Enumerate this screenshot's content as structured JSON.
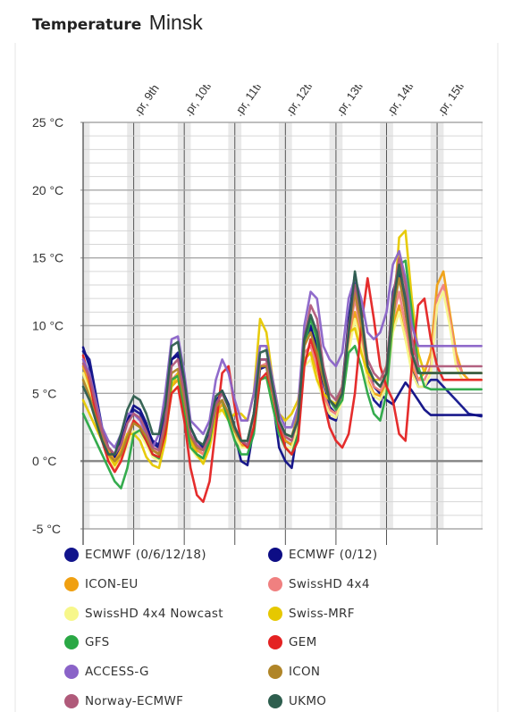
{
  "header": {
    "title": "Temperature",
    "city": "Minsk"
  },
  "chart_data": {
    "type": "line",
    "ylim": [
      -5,
      25
    ],
    "yticks": [
      -5,
      0,
      5,
      10,
      15,
      20,
      25
    ],
    "ytick_labels": [
      "-5 °C",
      "0 °C",
      "5 °C",
      "10 °C",
      "15 °C",
      "20 °C",
      "25 °C"
    ],
    "day_labels": [
      ".pr, 9th",
      ".pr, 10th",
      ".pr, 11th",
      ".pr, 12th",
      ".pr, 13th",
      ".pr, 14th",
      ".pr, 15th"
    ],
    "grid": true,
    "legend": "bottom",
    "x": [
      8.0,
      8.125,
      8.25,
      8.375,
      8.5,
      8.625,
      8.75,
      8.875,
      9.0,
      9.125,
      9.25,
      9.375,
      9.5,
      9.625,
      9.75,
      9.875,
      10.0,
      10.125,
      10.25,
      10.375,
      10.5,
      10.625,
      10.75,
      10.875,
      11.0,
      11.125,
      11.25,
      11.375,
      11.5,
      11.625,
      11.75,
      11.875,
      12.0,
      12.125,
      12.25,
      12.375,
      12.5,
      12.625,
      12.75,
      12.875,
      13.0,
      13.125,
      13.25,
      13.375,
      13.5,
      13.625,
      13.75,
      13.875,
      14.0,
      14.125,
      14.25,
      14.375,
      14.5,
      14.625,
      14.75,
      14.875,
      15.0,
      15.125,
      15.25,
      15.375,
      15.5,
      15.625,
      15.75,
      15.875
    ],
    "series": [
      {
        "name": "ECMWF (0/6/12/18)",
        "color": "#11148c",
        "values": [
          8.1,
          7.5,
          5.0,
          2.5,
          1.0,
          0.5,
          1.5,
          3.0,
          3.8,
          3.5,
          2.5,
          1.5,
          1.2,
          3.5,
          7.5,
          8.0,
          6.0,
          2.5,
          1.5,
          1.0,
          2.0,
          4.5,
          5.0,
          4.0,
          2.5,
          1.5,
          1.0,
          3.5,
          7.5,
          7.5,
          5.0,
          2.5,
          1.5,
          1.2,
          3.0,
          9.0,
          9.8,
          8.5,
          6.0,
          4.0,
          3.5,
          5.0,
          10.0,
          13.5,
          10.5,
          6.0,
          4.5,
          4.0,
          6.5,
          12.5,
          14.0,
          11.0,
          7.0,
          5.5,
          5.5,
          6.0,
          6.0,
          5.5,
          5.0,
          4.5,
          4.0,
          3.5,
          3.4,
          3.3
        ]
      },
      {
        "name": "ECMWF (0/12)",
        "color": "#0d0d85",
        "values": [
          8.4,
          7.0,
          4.5,
          2.0,
          0.8,
          0.3,
          1.2,
          3.0,
          4.1,
          3.8,
          2.8,
          1.3,
          1.0,
          3.0,
          7.5,
          7.8,
          5.0,
          1.5,
          0.5,
          0.2,
          1.5,
          4.0,
          5.2,
          4.2,
          2.0,
          0.0,
          -0.3,
          2.5,
          6.8,
          7.0,
          4.5,
          1.0,
          0.0,
          -0.5,
          2.5,
          9.5,
          10.0,
          8.0,
          5.0,
          3.2,
          3.0,
          5.5,
          10.5,
          13.8,
          11.0,
          7.0,
          5.5,
          5.0,
          4.5,
          4.2,
          5.0,
          5.8,
          5.2,
          4.5,
          3.8,
          3.4,
          3.4,
          3.4,
          3.4,
          3.4,
          3.4,
          3.4,
          3.4,
          3.4
        ]
      },
      {
        "name": "ICON-EU",
        "color": "#f0a011",
        "values": [
          7.0,
          5.5,
          3.5,
          1.8,
          0.8,
          0.0,
          0.8,
          2.0,
          2.8,
          2.5,
          1.8,
          0.8,
          0.5,
          2.5,
          5.5,
          6.0,
          4.0,
          1.5,
          0.8,
          0.5,
          1.5,
          3.5,
          4.2,
          3.2,
          2.0,
          1.2,
          1.0,
          3.0,
          6.0,
          6.2,
          4.5,
          2.5,
          1.5,
          1.2,
          2.8,
          7.5,
          8.0,
          6.8,
          5.0,
          3.8,
          3.5,
          4.8,
          8.5,
          11.0,
          9.0,
          6.0,
          5.0,
          4.8,
          6.0,
          10.0,
          11.5,
          9.0,
          7.0,
          6.0,
          6.5,
          8.0,
          13.0,
          14.0,
          11.0,
          8.0,
          6.5,
          6.0,
          6.0,
          6.0
        ]
      },
      {
        "name": "SwissHD 4x4",
        "color": "#f08080",
        "values": [
          7.5,
          6.0,
          3.8,
          2.0,
          0.5,
          -0.5,
          0.5,
          2.0,
          3.0,
          2.6,
          2.0,
          0.8,
          0.6,
          2.5,
          6.0,
          6.5,
          4.5,
          1.8,
          1.0,
          0.5,
          1.5,
          3.8,
          4.5,
          3.5,
          2.2,
          1.5,
          1.5,
          3.5,
          7.0,
          7.2,
          5.0,
          2.8,
          1.8,
          1.5,
          3.0,
          8.0,
          8.5,
          7.0,
          5.0,
          3.8,
          3.5,
          5.0,
          9.0,
          12.0,
          9.5,
          6.5,
          5.5,
          5.2,
          6.0,
          10.5,
          12.5,
          10.0,
          7.5,
          6.0,
          6.0,
          7.0,
          12.0,
          13.0,
          10.5,
          7.5,
          6.5,
          6.5,
          6.5,
          6.5
        ]
      },
      {
        "name": "SwissHD 4x4 Nowcast",
        "color": "#f7f78a",
        "values": [
          6.5,
          5.0,
          3.0,
          1.5,
          0.3,
          -0.5,
          0.0,
          1.2,
          2.2,
          2.0,
          1.2,
          0.3,
          0.0,
          2.0,
          5.0,
          5.5,
          3.5,
          1.0,
          0.3,
          0.0,
          1.0,
          3.0,
          3.8,
          3.0,
          1.8,
          1.0,
          1.0,
          2.8,
          6.0,
          6.2,
          4.0,
          2.0,
          1.0,
          1.0,
          2.5,
          7.0,
          7.5,
          6.0,
          4.5,
          3.5,
          3.2,
          4.5,
          8.0,
          10.5,
          8.5,
          5.8,
          4.8,
          4.5,
          5.5,
          9.5,
          11.0,
          9.0,
          6.5,
          5.5,
          5.5,
          6.5,
          11.5,
          12.5,
          10.0,
          7.0,
          6.0,
          6.0,
          6.0,
          6.0
        ]
      },
      {
        "name": "Swiss-MRF",
        "color": "#e6c800",
        "values": [
          4.5,
          3.5,
          2.5,
          1.5,
          0.5,
          -0.3,
          0.5,
          2.0,
          2.0,
          1.5,
          0.3,
          -0.3,
          -0.5,
          1.5,
          5.5,
          6.5,
          4.0,
          1.5,
          0.5,
          -0.2,
          1.0,
          3.5,
          3.8,
          3.0,
          3.5,
          3.5,
          3.0,
          5.0,
          10.5,
          9.5,
          6.0,
          3.5,
          3.0,
          3.5,
          4.5,
          7.5,
          8.0,
          6.0,
          5.0,
          4.5,
          4.2,
          5.5,
          9.5,
          9.8,
          8.0,
          6.5,
          6.0,
          6.0,
          7.0,
          10.0,
          16.5,
          17.0,
          12.0,
          8.0,
          6.5,
          6.5,
          6.5,
          6.5,
          6.5,
          6.5,
          6.5,
          6.5,
          6.5,
          6.5
        ]
      },
      {
        "name": "GFS",
        "color": "#2aa845",
        "values": [
          3.5,
          2.5,
          1.5,
          0.5,
          -0.5,
          -1.5,
          -2.0,
          -0.5,
          2.0,
          2.3,
          1.5,
          0.5,
          0.2,
          2.5,
          6.0,
          6.3,
          3.5,
          1.0,
          0.5,
          0.2,
          1.5,
          4.0,
          4.5,
          3.0,
          1.5,
          0.5,
          0.5,
          2.0,
          6.0,
          6.2,
          4.0,
          2.0,
          1.0,
          0.5,
          2.0,
          8.5,
          10.5,
          9.0,
          6.0,
          4.5,
          3.8,
          4.5,
          8.0,
          8.5,
          7.0,
          5.0,
          3.5,
          3.0,
          5.0,
          10.5,
          14.5,
          14.8,
          11.0,
          7.0,
          5.5,
          5.3,
          5.3,
          5.3,
          5.3,
          5.3,
          5.3,
          5.3,
          5.3,
          5.3
        ]
      },
      {
        "name": "GEM",
        "color": "#e42222",
        "values": [
          7.8,
          6.0,
          3.5,
          1.5,
          0.0,
          -0.8,
          0.0,
          1.5,
          3.0,
          2.5,
          1.5,
          0.5,
          0.3,
          2.0,
          5.0,
          5.5,
          3.0,
          -0.5,
          -2.5,
          -3.0,
          -1.5,
          2.5,
          6.5,
          7.0,
          4.0,
          1.5,
          1.0,
          2.5,
          6.0,
          6.5,
          5.0,
          2.5,
          1.0,
          0.5,
          1.5,
          7.0,
          9.0,
          7.5,
          4.5,
          2.5,
          1.5,
          1.0,
          2.0,
          5.0,
          10.0,
          13.5,
          10.5,
          7.0,
          5.5,
          4.5,
          2.0,
          1.5,
          7.0,
          11.5,
          12.0,
          9.0,
          7.0,
          6.0,
          6.0,
          6.0,
          6.0,
          6.0,
          6.0,
          6.0
        ]
      },
      {
        "name": "ACCESS-G",
        "color": "#8a63c8",
        "values": [
          7.5,
          6.5,
          4.5,
          2.5,
          1.5,
          1.0,
          2.0,
          3.5,
          3.5,
          3.0,
          2.0,
          1.0,
          2.0,
          5.0,
          9.0,
          9.2,
          6.5,
          3.0,
          2.5,
          2.0,
          3.0,
          6.0,
          7.5,
          6.5,
          4.5,
          3.0,
          3.0,
          5.0,
          8.5,
          8.5,
          6.0,
          3.5,
          2.5,
          2.5,
          4.0,
          10.0,
          12.5,
          12.0,
          8.5,
          7.5,
          7.0,
          8.0,
          12.0,
          13.5,
          12.0,
          9.5,
          9.0,
          9.5,
          11.0,
          14.5,
          15.5,
          13.5,
          10.0,
          8.5,
          8.5,
          8.5,
          8.5,
          8.5,
          8.5,
          8.5,
          8.5,
          8.5,
          8.5,
          8.5
        ]
      },
      {
        "name": "ICON",
        "color": "#b08528",
        "values": [
          6.0,
          4.8,
          3.2,
          1.8,
          0.5,
          0.0,
          0.5,
          1.8,
          2.8,
          2.5,
          1.8,
          0.8,
          0.5,
          2.8,
          6.5,
          6.8,
          4.5,
          1.8,
          1.0,
          0.8,
          1.8,
          4.0,
          4.5,
          3.5,
          2.2,
          1.5,
          1.5,
          3.5,
          7.0,
          7.0,
          5.0,
          3.0,
          2.0,
          1.8,
          3.5,
          8.5,
          9.5,
          8.0,
          6.0,
          4.5,
          4.0,
          5.5,
          9.5,
          12.5,
          10.0,
          7.0,
          6.0,
          5.5,
          6.5,
          11.0,
          13.5,
          11.0,
          8.0,
          6.5,
          6.5,
          6.5,
          6.5,
          6.5,
          6.5,
          6.5,
          6.5,
          6.5,
          6.5,
          6.5
        ]
      },
      {
        "name": "Norway-ECMWF",
        "color": "#b05a7a",
        "values": [
          7.2,
          6.2,
          4.2,
          2.2,
          1.0,
          0.5,
          1.2,
          2.8,
          3.5,
          3.2,
          2.2,
          1.0,
          0.8,
          3.0,
          7.0,
          7.5,
          5.0,
          2.0,
          1.2,
          0.8,
          1.8,
          4.2,
          5.0,
          4.0,
          2.5,
          1.5,
          1.2,
          3.5,
          7.5,
          7.5,
          5.2,
          2.8,
          1.8,
          1.5,
          3.2,
          9.0,
          11.5,
          10.5,
          7.0,
          5.0,
          4.5,
          5.5,
          10.0,
          13.0,
          11.0,
          7.5,
          6.5,
          6.0,
          7.0,
          12.0,
          15.0,
          13.0,
          9.0,
          7.0,
          7.0,
          7.0,
          7.0,
          7.0,
          7.0,
          7.0,
          7.0,
          7.0,
          7.0,
          7.0
        ]
      },
      {
        "name": "UKMO",
        "color": "#2e5e4e",
        "values": [
          5.5,
          4.5,
          3.0,
          1.5,
          0.5,
          0.5,
          2.0,
          3.8,
          4.8,
          4.5,
          3.5,
          2.0,
          2.0,
          4.0,
          8.5,
          8.8,
          6.0,
          2.5,
          1.5,
          1.2,
          2.5,
          4.8,
          5.2,
          4.0,
          2.5,
          1.5,
          1.5,
          3.5,
          8.0,
          8.2,
          5.5,
          3.0,
          2.0,
          1.8,
          3.0,
          9.0,
          10.8,
          9.5,
          6.5,
          4.5,
          4.0,
          5.0,
          9.5,
          14.0,
          11.0,
          7.0,
          6.0,
          5.5,
          6.5,
          11.5,
          14.5,
          12.0,
          8.0,
          6.5,
          6.5,
          6.5,
          6.5,
          6.5,
          6.5,
          6.5,
          6.5,
          6.5,
          6.5,
          6.5
        ]
      }
    ]
  },
  "legend": {
    "items": [
      {
        "label": "ECMWF (0/6/12/18)",
        "color": "#11148c"
      },
      {
        "label": "ECMWF (0/12)",
        "color": "#0d0d85"
      },
      {
        "label": "ICON-EU",
        "color": "#f0a011"
      },
      {
        "label": "SwissHD 4x4",
        "color": "#f08080"
      },
      {
        "label": "SwissHD 4x4 Nowcast",
        "color": "#f7f78a"
      },
      {
        "label": "Swiss-MRF",
        "color": "#e6c800"
      },
      {
        "label": "GFS",
        "color": "#2aa845"
      },
      {
        "label": "GEM",
        "color": "#e42222"
      },
      {
        "label": "ACCESS-G",
        "color": "#8a63c8"
      },
      {
        "label": "ICON",
        "color": "#b08528"
      },
      {
        "label": "Norway-ECMWF",
        "color": "#b05a7a"
      },
      {
        "label": "UKMO",
        "color": "#2e5e4e"
      }
    ]
  }
}
